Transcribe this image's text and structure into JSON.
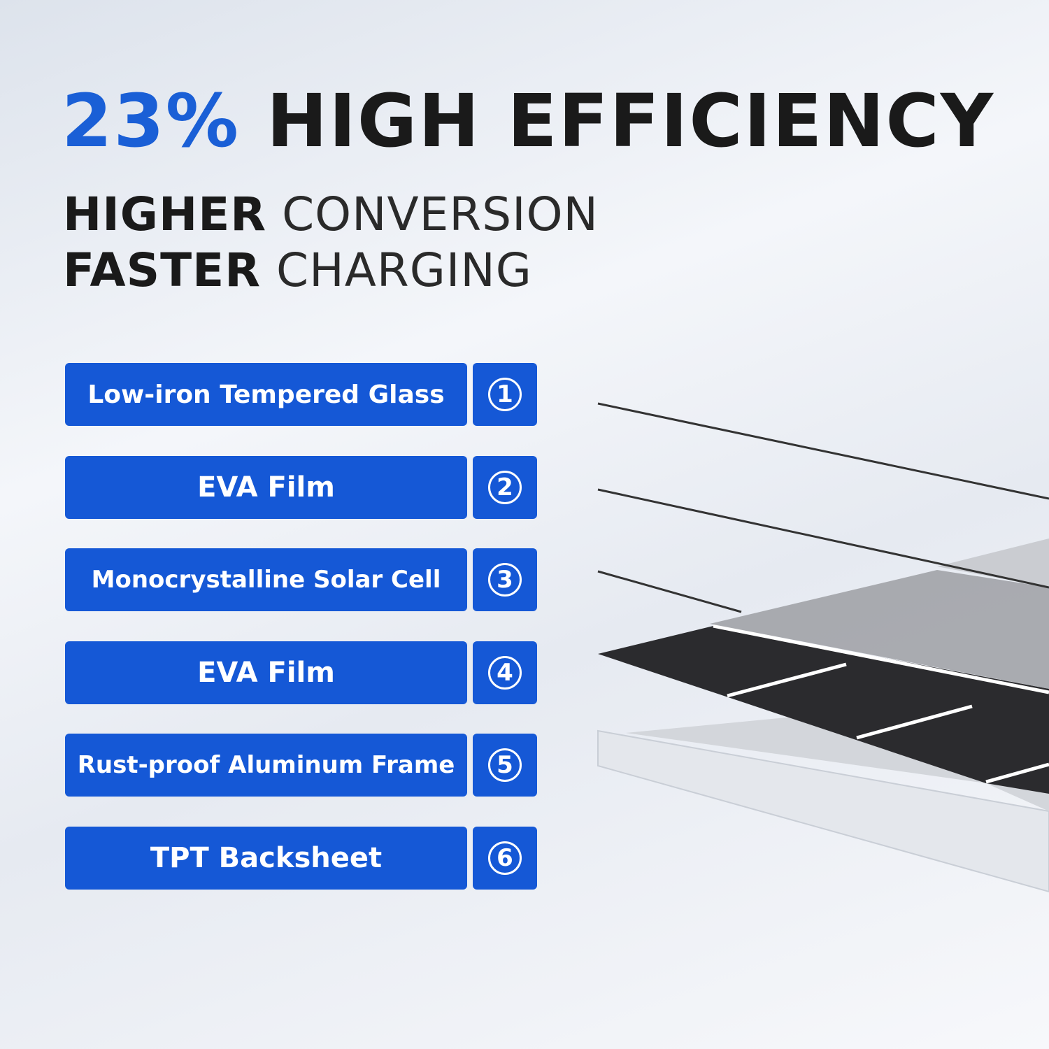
{
  "headline": {
    "highlight": "23%",
    "text": "HIGH EFFICIENCY"
  },
  "taglines": [
    {
      "bold": "HIGHER",
      "light": "CONVERSION"
    },
    {
      "bold": "FASTER",
      "light": "CHARGING"
    }
  ],
  "layers": [
    {
      "label": "Low-iron Tempered Glass",
      "number": "1"
    },
    {
      "label": "EVA Film",
      "number": "2"
    },
    {
      "label": "Monocrystalline Solar Cell",
      "number": "3"
    },
    {
      "label": "EVA Film",
      "number": "4"
    },
    {
      "label": "Rust-proof Aluminum Frame",
      "number": "5"
    },
    {
      "label": "TPT Backsheet",
      "number": "6"
    }
  ]
}
